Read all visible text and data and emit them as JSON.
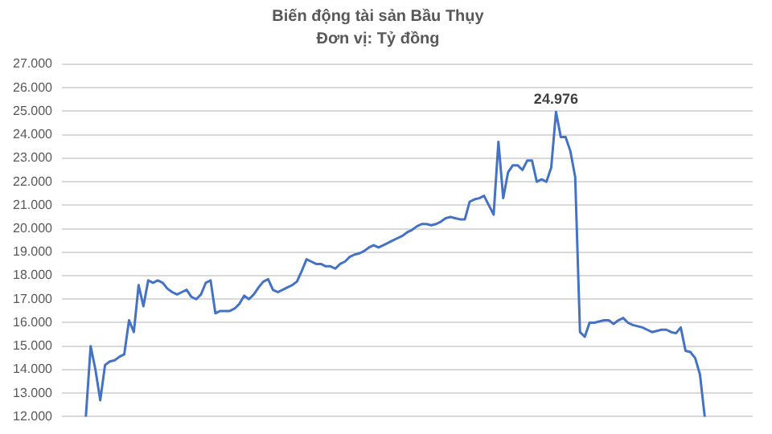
{
  "chart_data": {
    "type": "line",
    "title": "Biến động tài sản Bầu Thụy",
    "subtitle": "Đơn vị: Tỷ đồng",
    "categories": [
      null,
      null,
      null,
      null,
      null,
      null,
      null,
      null,
      null,
      null,
      null,
      null,
      null,
      null,
      null,
      null,
      null,
      null,
      null,
      null,
      null,
      null,
      null,
      null,
      null,
      null,
      null,
      null,
      null,
      null,
      null,
      null,
      null,
      null,
      null,
      null,
      null,
      null,
      null,
      null,
      null,
      null,
      null,
      null,
      null,
      null,
      null,
      null,
      null,
      null,
      null,
      null,
      null,
      null,
      null,
      null,
      null,
      null,
      null,
      null,
      null,
      null,
      null,
      null,
      null,
      null,
      null,
      null,
      null,
      null,
      null,
      null,
      null,
      null,
      null,
      null,
      null,
      null,
      null,
      null,
      null,
      null,
      null,
      null,
      null,
      null,
      null,
      null,
      null,
      null,
      null,
      null,
      null,
      null,
      null,
      null,
      null,
      null,
      null,
      null,
      null,
      null,
      null,
      null,
      null,
      null,
      null,
      null,
      null,
      null,
      null,
      null,
      null,
      null,
      null,
      null,
      null,
      null,
      null,
      null,
      null,
      null,
      null,
      null,
      null,
      null,
      null,
      null,
      null,
      null,
      null,
      null,
      null,
      null,
      null,
      null,
      null,
      null,
      null,
      null,
      null,
      null,
      null,
      null,
      null
    ],
    "series": [
      {
        "color": "#4472c4",
        "values": [
          null,
          null,
          null,
          null,
          null,
          12000,
          15000,
          14000,
          12700,
          14200,
          14350,
          14400,
          14550,
          14650,
          16100,
          15600,
          17600,
          16700,
          17800,
          17700,
          17800,
          17700,
          17450,
          17300,
          17200,
          17300,
          17400,
          17100,
          17000,
          17200,
          17700,
          17800,
          16400,
          16500,
          16500,
          16500,
          16600,
          16800,
          17150,
          17000,
          17200,
          17500,
          17750,
          17850,
          17400,
          17300,
          17400,
          17500,
          17600,
          17750,
          18200,
          18700,
          18600,
          18500,
          18500,
          18400,
          18400,
          18300,
          18500,
          18600,
          18800,
          18900,
          18950,
          19050,
          19200,
          19300,
          19200,
          19300,
          19400,
          19500,
          19600,
          19700,
          19850,
          19950,
          20100,
          20200,
          20200,
          20150,
          20200,
          20300,
          20450,
          20500,
          20450,
          20400,
          20400,
          21150,
          21250,
          21300,
          21400,
          21000,
          20600,
          23700,
          21300,
          22400,
          22700,
          22700,
          22500,
          22900,
          22900,
          22000,
          22100,
          22000,
          22600,
          24976,
          23900,
          23900,
          23300,
          22200,
          15600,
          15400,
          16000,
          16000,
          16050,
          16100,
          16100,
          15950,
          16100,
          16200,
          16000,
          15900,
          15850,
          15800,
          15700,
          15600,
          15650,
          15700,
          15700,
          15600,
          15550,
          15800,
          14800,
          14750,
          14500,
          13800,
          12000,
          null,
          null,
          null,
          null,
          null,
          null,
          null,
          null,
          null,
          null
        ]
      }
    ],
    "ylim": [
      12000,
      27000
    ],
    "yticks": [
      {
        "value": 12000,
        "label": "12.000"
      },
      {
        "value": 13000,
        "label": "13.000"
      },
      {
        "value": 14000,
        "label": "14.000"
      },
      {
        "value": 15000,
        "label": "15.000"
      },
      {
        "value": 16000,
        "label": "16.000"
      },
      {
        "value": 17000,
        "label": "17.000"
      },
      {
        "value": 18000,
        "label": "18.000"
      },
      {
        "value": 19000,
        "label": "19.000"
      },
      {
        "value": 20000,
        "label": "20.000"
      },
      {
        "value": 21000,
        "label": "21.000"
      },
      {
        "value": 22000,
        "label": "22.000"
      },
      {
        "value": 23000,
        "label": "23.000"
      },
      {
        "value": 24000,
        "label": "24.000"
      },
      {
        "value": 25000,
        "label": "25.000"
      },
      {
        "value": 26000,
        "label": "26.000"
      },
      {
        "value": 27000,
        "label": "27.000"
      }
    ],
    "grid": "y",
    "tick_labels": "y",
    "marker": "none",
    "annotations": [
      {
        "text": "24.976",
        "y": 24976
      }
    ]
  }
}
